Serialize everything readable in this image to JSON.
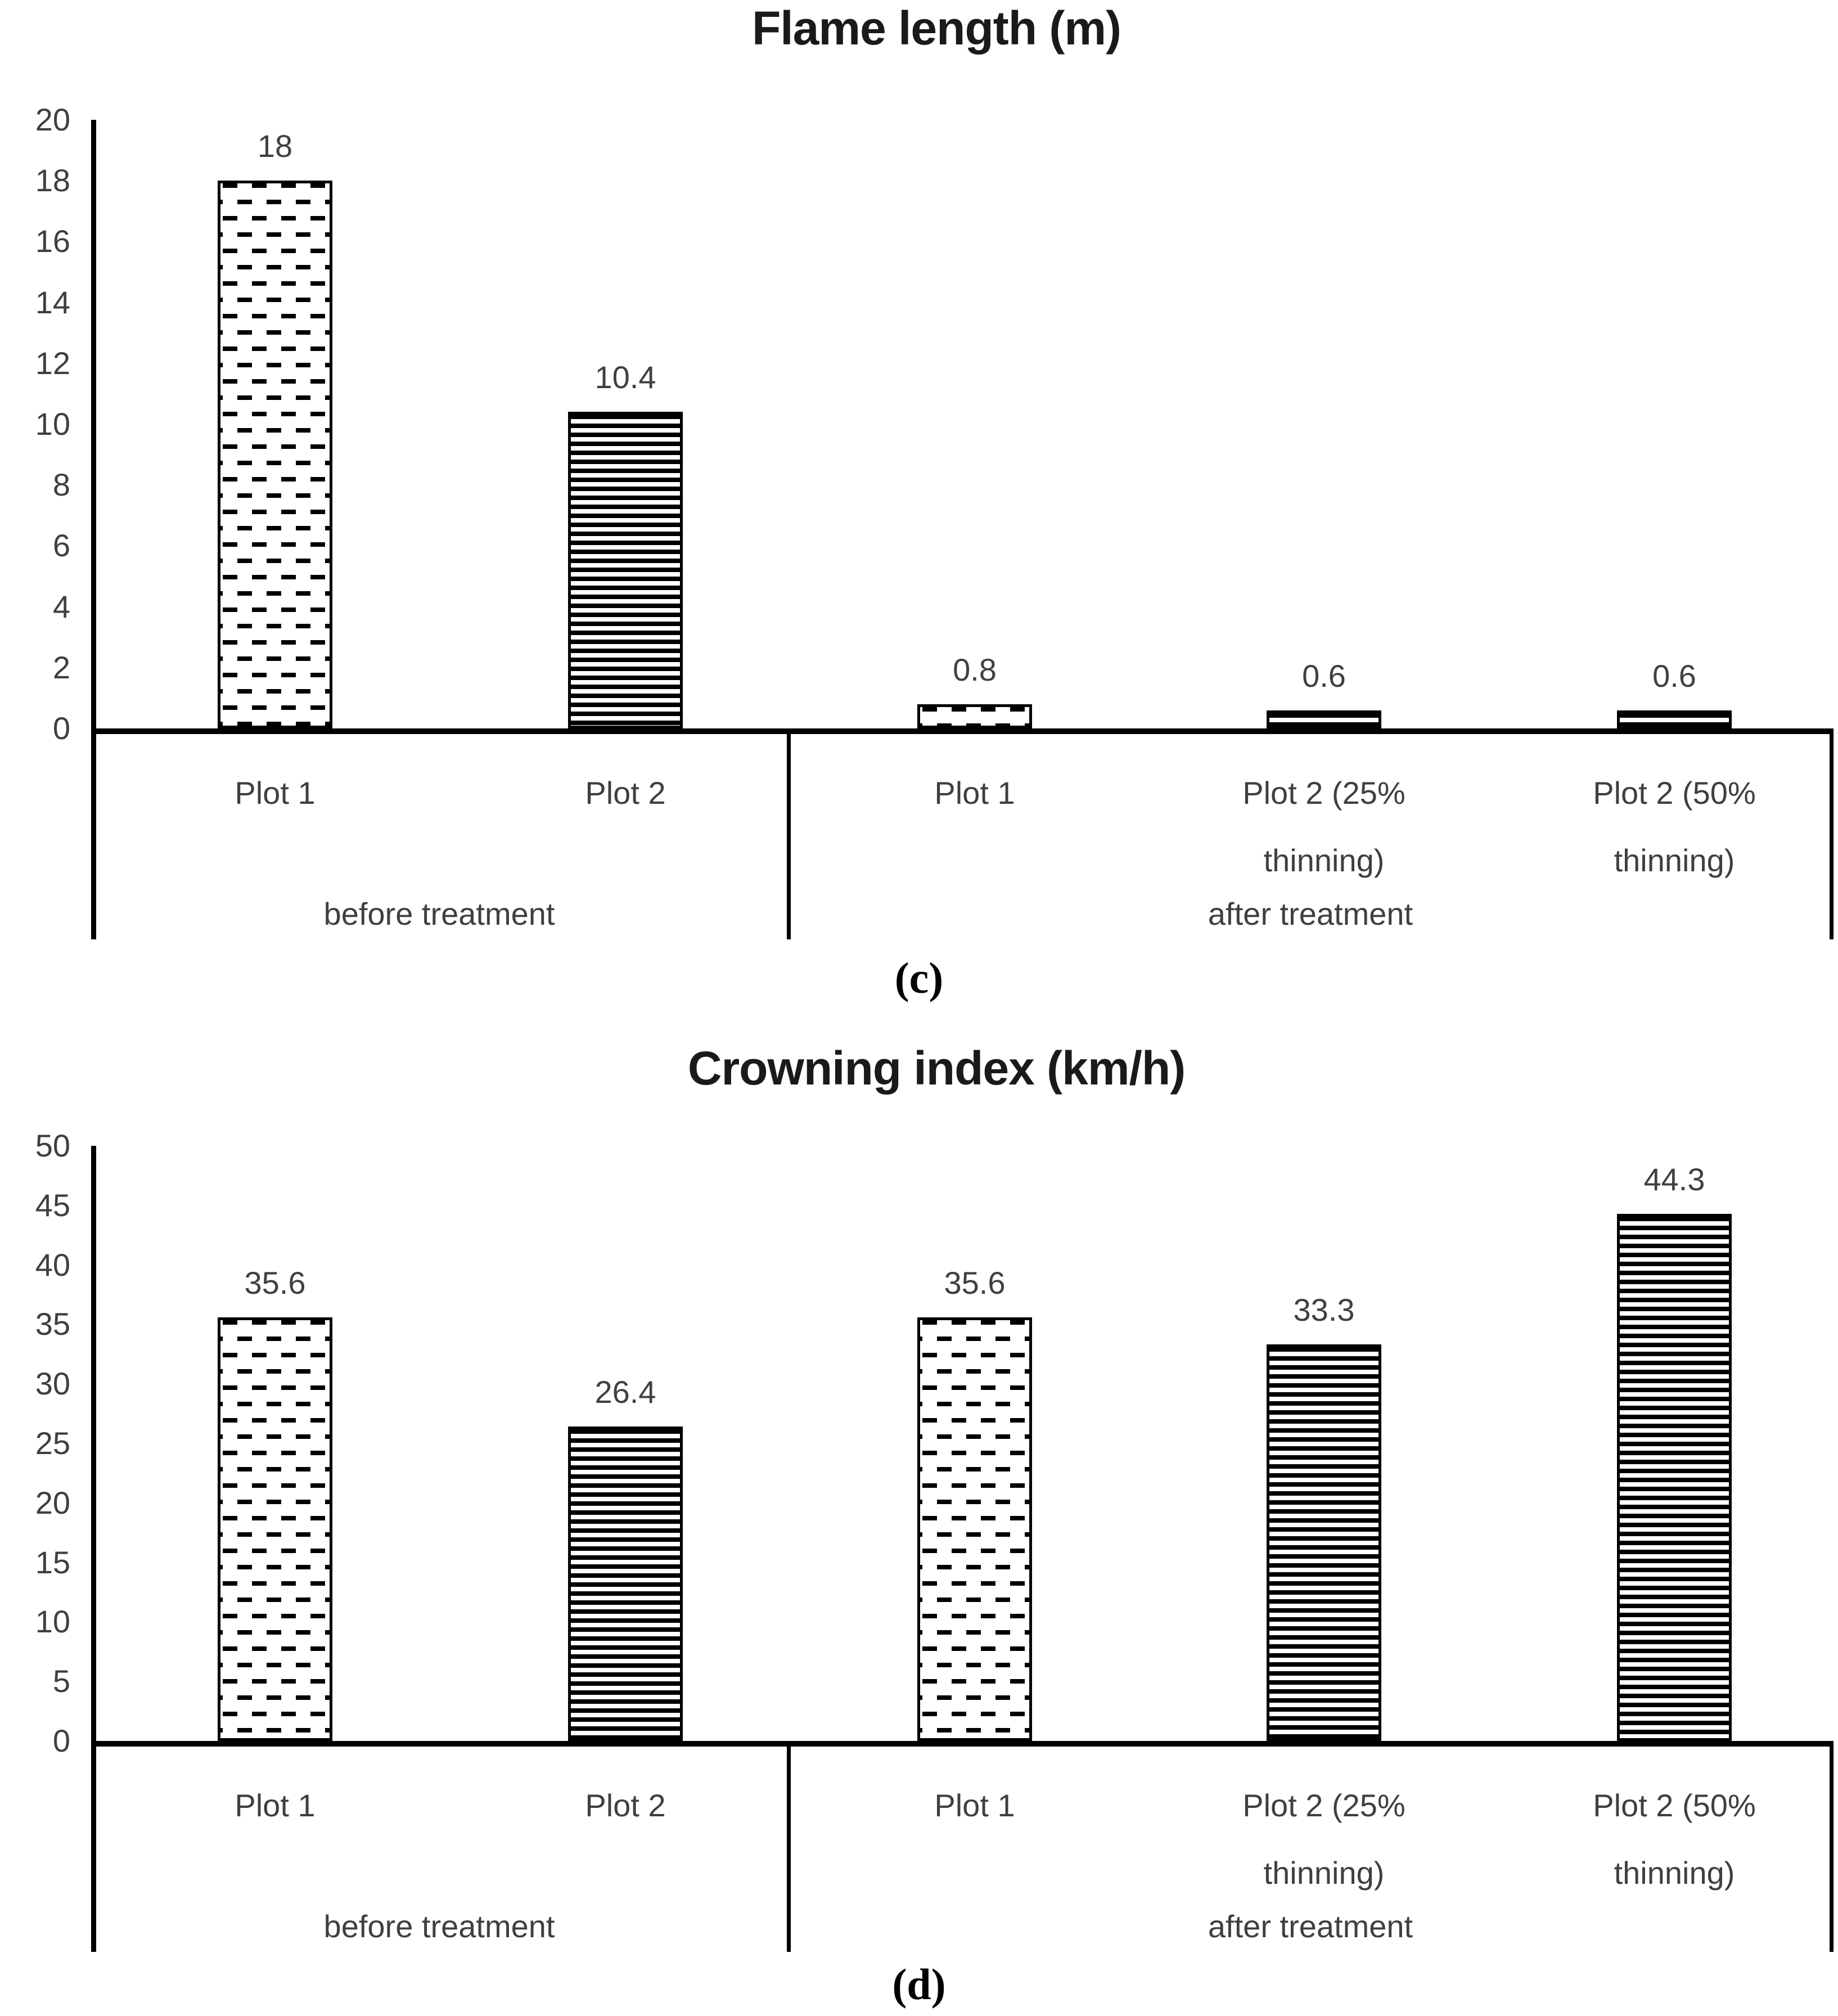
{
  "page": {
    "background": "#ffffff"
  },
  "colors": {
    "bar_fill": "#ffffff",
    "bar_outline": "#000000",
    "pattern_ink": "#000000",
    "axis": "#000000",
    "label_text": "#3f3f3f",
    "title_text": "#1a1a1a"
  },
  "chart_data": [
    {
      "id": "flame-length",
      "type": "bar",
      "title": "Flame length (m)",
      "panel_label": "(c)",
      "xlabel": "",
      "ylabel": "",
      "ylim": [
        0,
        20
      ],
      "ytick_step": 2,
      "yticks": [
        20,
        18,
        16,
        14,
        12,
        10,
        8,
        6,
        4,
        2,
        0
      ],
      "grid": false,
      "legend_position": "none",
      "categories": [
        "Plot 1",
        "Plot 2",
        "Plot 1",
        "Plot 2 (25% thinning)",
        "Plot 2 (50% thinning)"
      ],
      "values": [
        18,
        10.4,
        0.8,
        0.6,
        0.6
      ],
      "groups": [
        {
          "label": "before treatment",
          "bars": [
            {
              "category": "Plot 1",
              "category_lines": [
                "Plot 1"
              ],
              "value": 18,
              "value_label": "18",
              "pattern": "dashed-brick"
            },
            {
              "category": "Plot 2",
              "category_lines": [
                "Plot 2"
              ],
              "value": 10.4,
              "value_label": "10.4",
              "pattern": "horizontal-lines"
            }
          ]
        },
        {
          "label": "after treatment",
          "bars": [
            {
              "category": "Plot 1",
              "category_lines": [
                "Plot 1"
              ],
              "value": 0.8,
              "value_label": "0.8",
              "pattern": "dashed-brick"
            },
            {
              "category": "Plot 2 (25% thinning)",
              "category_lines": [
                "Plot 2 (25%",
                "thinning)"
              ],
              "value": 0.6,
              "value_label": "0.6",
              "pattern": "horizontal-lines"
            },
            {
              "category": "Plot 2 (50% thinning)",
              "category_lines": [
                "Plot 2 (50%",
                "thinning)"
              ],
              "value": 0.6,
              "value_label": "0.6",
              "pattern": "horizontal-lines"
            }
          ]
        }
      ]
    },
    {
      "id": "crowning-index",
      "type": "bar",
      "title": "Crowning index (km/h)",
      "panel_label": "(d)",
      "xlabel": "",
      "ylabel": "",
      "ylim": [
        0,
        50
      ],
      "ytick_step": 5,
      "yticks": [
        50,
        45,
        40,
        35,
        30,
        25,
        20,
        15,
        10,
        5,
        0
      ],
      "grid": false,
      "legend_position": "none",
      "categories": [
        "Plot 1",
        "Plot 2",
        "Plot 1",
        "Plot 2 (25% thinning)",
        "Plot 2 (50% thinning)"
      ],
      "values": [
        35.6,
        26.4,
        35.6,
        33.3,
        44.3
      ],
      "groups": [
        {
          "label": "before treatment",
          "bars": [
            {
              "category": "Plot 1",
              "category_lines": [
                "Plot 1"
              ],
              "value": 35.6,
              "value_label": "35.6",
              "pattern": "dashed-brick"
            },
            {
              "category": "Plot 2",
              "category_lines": [
                "Plot 2"
              ],
              "value": 26.4,
              "value_label": "26.4",
              "pattern": "horizontal-lines"
            }
          ]
        },
        {
          "label": "after treatment",
          "bars": [
            {
              "category": "Plot 1",
              "category_lines": [
                "Plot 1"
              ],
              "value": 35.6,
              "value_label": "35.6",
              "pattern": "dashed-brick"
            },
            {
              "category": "Plot 2 (25% thinning)",
              "category_lines": [
                "Plot 2 (25%",
                "thinning)"
              ],
              "value": 33.3,
              "value_label": "33.3",
              "pattern": "horizontal-lines"
            },
            {
              "category": "Plot 2 (50% thinning)",
              "category_lines": [
                "Plot 2 (50%",
                "thinning)"
              ],
              "value": 44.3,
              "value_label": "44.3",
              "pattern": "horizontal-lines"
            }
          ]
        }
      ]
    }
  ]
}
